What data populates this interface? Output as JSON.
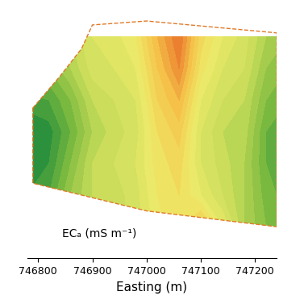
{
  "chart_data": {
    "type": "contour",
    "x_label": "Easting (m)",
    "annotation": "ECₐ (mS m⁻¹)",
    "xlim": [
      746780,
      747240
    ],
    "xticks": [
      746800,
      746900,
      747000,
      747100,
      747200
    ],
    "tick_labels": "x",
    "grid": false,
    "x": [
      746780,
      746820,
      746860,
      746900,
      746940,
      746980,
      747020,
      747060,
      747100,
      747140,
      747180,
      747220,
      747260
    ],
    "y": [
      0,
      40,
      80,
      120,
      160,
      200,
      240,
      280
    ],
    "cells": [
      [
        15,
        15,
        18,
        22,
        24,
        26,
        30,
        33,
        36,
        30,
        22,
        18,
        16
      ],
      [
        15,
        15,
        18,
        22,
        24,
        27,
        31,
        34,
        38,
        30,
        22,
        18,
        16
      ],
      [
        12,
        14,
        20,
        24,
        25,
        27,
        32,
        34,
        30,
        26,
        22,
        17,
        15
      ],
      [
        10,
        12,
        18,
        24,
        26,
        28,
        33,
        35,
        28,
        25,
        22,
        16,
        14
      ],
      [
        10,
        11,
        16,
        22,
        25,
        27,
        34,
        37,
        28,
        24,
        23,
        16,
        14
      ],
      [
        13,
        14,
        18,
        24,
        26,
        28,
        36,
        40,
        30,
        26,
        24,
        18,
        16
      ],
      [
        18,
        18,
        22,
        27,
        28,
        30,
        38,
        44,
        33,
        28,
        26,
        20,
        18
      ],
      [
        20,
        20,
        24,
        28,
        29,
        32,
        40,
        46,
        35,
        30,
        27,
        22,
        20
      ]
    ],
    "color_range": [
      10,
      46
    ],
    "boundary": [
      [
        746790,
        190
      ],
      [
        746840,
        230
      ],
      [
        746880,
        265
      ],
      [
        746900,
        295
      ],
      [
        747000,
        300
      ],
      [
        747240,
        285
      ],
      [
        747240,
        40
      ],
      [
        747000,
        60
      ],
      [
        746790,
        95
      ]
    ]
  }
}
